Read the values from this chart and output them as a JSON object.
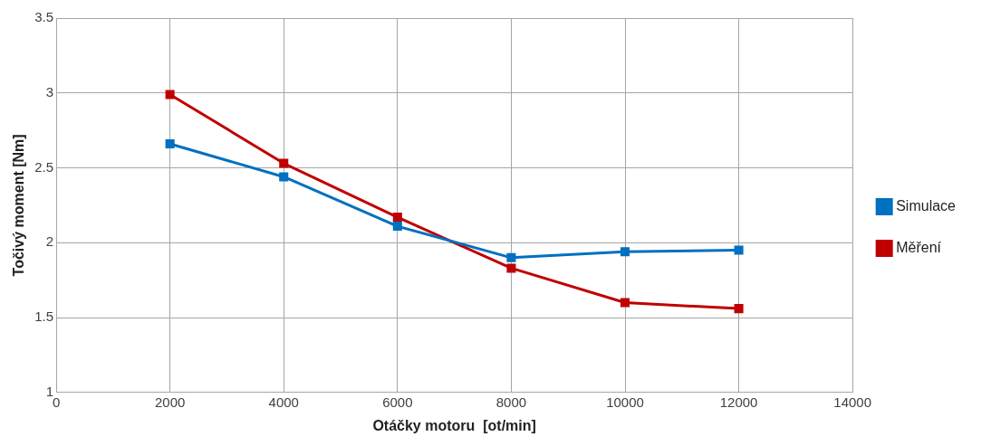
{
  "chart_data": {
    "type": "line",
    "xlabel": "Otáčky motoru  [ot/min]",
    "ylabel": "Točivý moment [Nm]",
    "x": [
      2000,
      4000,
      6000,
      8000,
      10000,
      12000
    ],
    "series": [
      {
        "name": "Simulace",
        "color": "#0070c0",
        "values": [
          2.66,
          2.44,
          2.11,
          1.9,
          1.94,
          1.95
        ]
      },
      {
        "name": "Měření",
        "color": "#c00000",
        "values": [
          2.99,
          2.53,
          2.17,
          1.83,
          1.6,
          1.56
        ]
      }
    ],
    "xlim": [
      0,
      14000
    ],
    "xticks": [
      0,
      2000,
      4000,
      6000,
      8000,
      10000,
      12000,
      14000
    ],
    "ylim": [
      1,
      3.5
    ],
    "yticks": [
      1,
      1.5,
      2,
      2.5,
      3,
      3.5
    ],
    "grid": true,
    "legend": "right",
    "marker": "square",
    "line_style": "solid"
  }
}
